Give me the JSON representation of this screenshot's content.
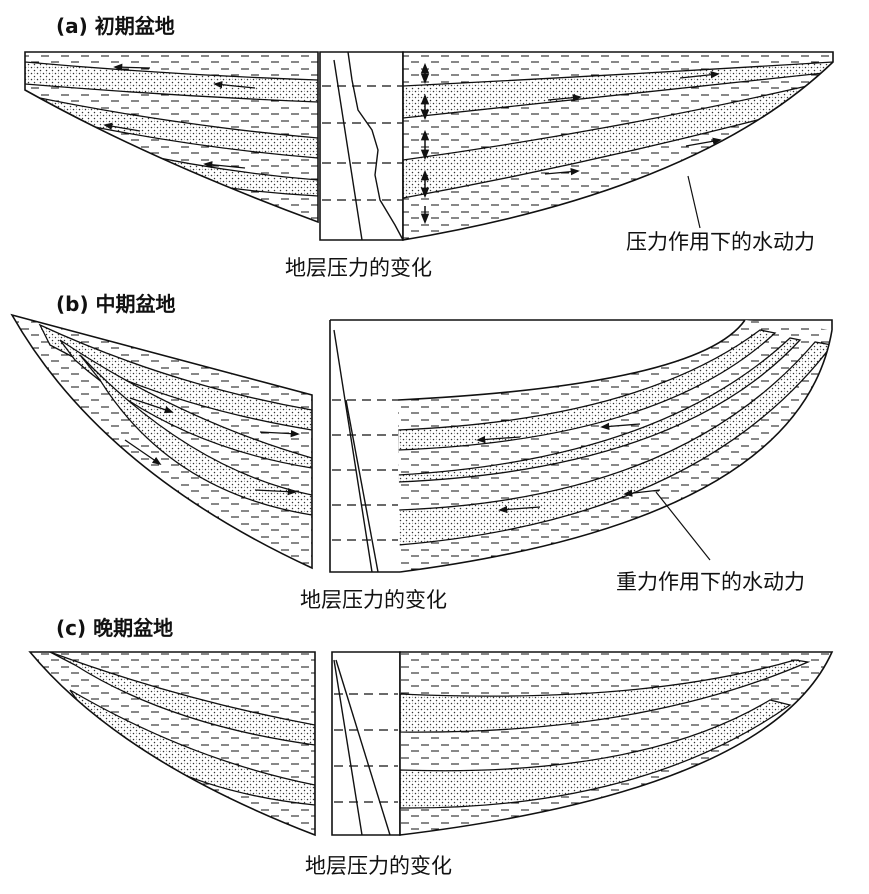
{
  "panels": [
    {
      "label": "(a) 初期盆地",
      "pressure_caption": "地层压力的变化",
      "flow_caption": "压力作用下的水动力"
    },
    {
      "label": "(b) 中期盆地",
      "pressure_caption": "地层压力的变化",
      "flow_caption": "重力作用下的水动力"
    },
    {
      "label": "(c) 晚期盆地",
      "pressure_caption": "地层压力的变化"
    }
  ],
  "colors": {
    "ink": "#111111",
    "sand_dot": "#333333",
    "background": "#ffffff"
  }
}
